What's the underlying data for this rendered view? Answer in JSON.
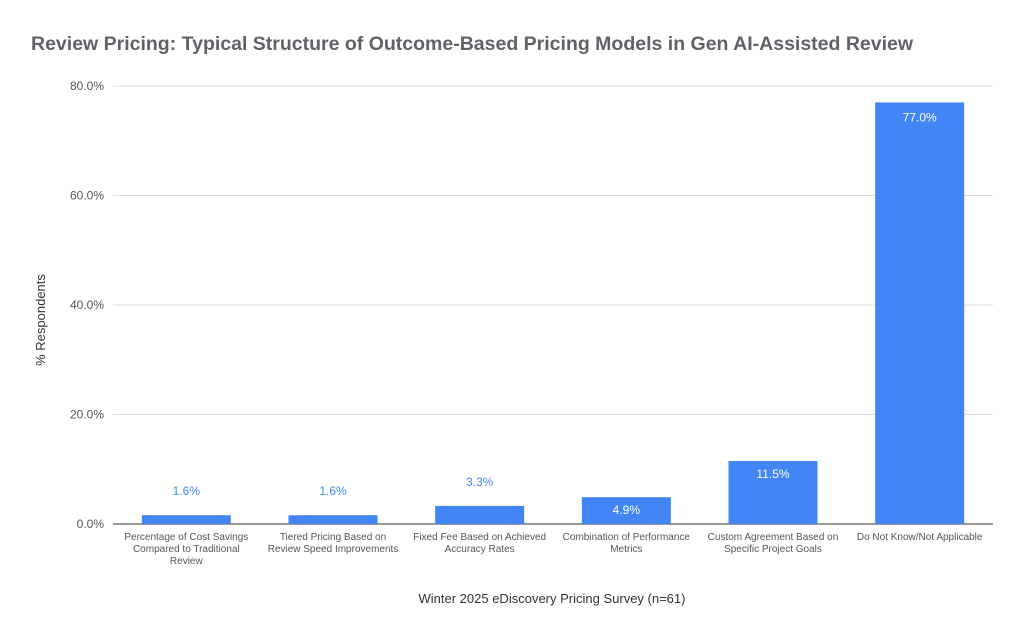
{
  "chart_data": {
    "type": "bar",
    "title": "Review Pricing: Typical Structure of Outcome-Based Pricing Models in Gen AI-Assisted Review",
    "xlabel": "Winter 2025 eDiscovery Pricing Survey (n=61)",
    "ylabel": "% Respondents",
    "ylim": [
      0,
      80
    ],
    "yticks": [
      "0.0%",
      "20.0%",
      "40.0%",
      "60.0%",
      "80.0%"
    ],
    "grid": true,
    "categories": [
      [
        "Percentage of Cost Savings",
        "Compared to Traditional",
        "Review"
      ],
      [
        "Tiered Pricing Based on",
        "Review Speed Improvements"
      ],
      [
        "Fixed Fee Based on Achieved",
        "Accuracy Rates"
      ],
      [
        "Combination of Performance",
        "Metrics"
      ],
      [
        "Custom Agreement Based on",
        "Specific Project Goals"
      ],
      [
        "Do Not Know/Not Applicable"
      ]
    ],
    "values": [
      1.6,
      1.6,
      3.3,
      4.9,
      11.5,
      77.0
    ],
    "data_labels": [
      "1.6%",
      "1.6%",
      "3.3%",
      "4.9%",
      "11.5%",
      "77.0%"
    ],
    "bar_color": "#4285f4",
    "label_outside_color": "#4285f4",
    "label_inside_color": "#ffffff"
  }
}
